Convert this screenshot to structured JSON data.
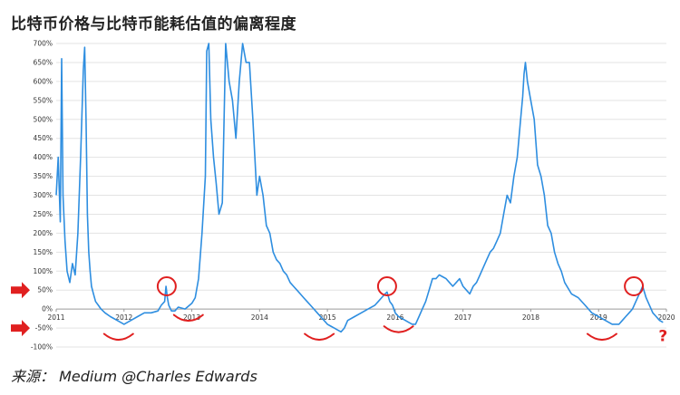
{
  "title": "比特币价格与比特币能耗估值的偏离程度",
  "source": "来源： Medium @Charles Edwards",
  "chart_data": {
    "type": "line",
    "title": "比特币价格与比特币能耗估值的偏离程度",
    "xlabel": "",
    "ylabel": "",
    "ylim": [
      -100,
      700
    ],
    "xlim": [
      2011.0,
      2020.0
    ],
    "grid": true,
    "y_ticks": [
      "700%",
      "650%",
      "600%",
      "550%",
      "500%",
      "450%",
      "400%",
      "350%",
      "300%",
      "250%",
      "200%",
      "150%",
      "100%",
      "50%",
      "0%",
      "-50%",
      "-100%"
    ],
    "x_ticks": [
      "2011",
      "2012",
      "2013",
      "2014",
      "2015",
      "2016",
      "2017",
      "2018",
      "2019",
      "2020"
    ],
    "color": "#2e8ee0",
    "series": [
      {
        "x": [
          2011.0,
          2011.03,
          2011.06,
          2011.08,
          2011.1,
          2011.13,
          2011.16,
          2011.2,
          2011.24,
          2011.28,
          2011.32,
          2011.36,
          2011.4,
          2011.42,
          2011.44,
          2011.46,
          2011.48,
          2011.5,
          2011.52,
          2011.55,
          2011.58,
          2011.62,
          2011.66,
          2011.72,
          2011.8,
          2011.9,
          2012.0,
          2012.1,
          2012.2,
          2012.3,
          2012.4,
          2012.5,
          2012.55,
          2012.6,
          2012.62,
          2012.64,
          2012.66,
          2012.7,
          2012.75,
          2012.8,
          2012.9,
          2013.0,
          2013.05,
          2013.1,
          2013.15,
          2013.2,
          2013.22,
          2013.25,
          2013.28,
          2013.32,
          2013.36,
          2013.4,
          2013.45,
          2013.5,
          2013.55,
          2013.6,
          2013.65,
          2013.7,
          2013.75,
          2013.8,
          2013.85,
          2013.9,
          2013.93,
          2013.96,
          2014.0,
          2014.05,
          2014.1,
          2014.15,
          2014.2,
          2014.25,
          2014.3,
          2014.35,
          2014.4,
          2014.45,
          2014.5,
          2014.55,
          2014.6,
          2014.65,
          2014.7,
          2014.75,
          2014.8,
          2014.85,
          2014.9,
          2014.95,
          2015.0,
          2015.05,
          2015.1,
          2015.15,
          2015.2,
          2015.25,
          2015.3,
          2015.4,
          2015.5,
          2015.6,
          2015.7,
          2015.75,
          2015.8,
          2015.85,
          2015.88,
          2015.92,
          2015.96,
          2016.0,
          2016.05,
          2016.1,
          2016.15,
          2016.2,
          2016.25,
          2016.3,
          2016.35,
          2016.4,
          2016.45,
          2016.5,
          2016.55,
          2016.6,
          2016.65,
          2016.7,
          2016.75,
          2016.8,
          2016.85,
          2016.9,
          2016.95,
          2017.0,
          2017.05,
          2017.1,
          2017.15,
          2017.2,
          2017.25,
          2017.3,
          2017.35,
          2017.4,
          2017.45,
          2017.5,
          2017.55,
          2017.6,
          2017.65,
          2017.7,
          2017.75,
          2017.8,
          2017.85,
          2017.88,
          2017.9,
          2017.92,
          2017.95,
          2018.0,
          2018.05,
          2018.1,
          2018.15,
          2018.2,
          2018.25,
          2018.3,
          2018.35,
          2018.4,
          2018.45,
          2018.5,
          2018.6,
          2018.7,
          2018.8,
          2018.9,
          2019.0,
          2019.1,
          2019.2,
          2019.3,
          2019.35,
          2019.4,
          2019.45,
          2019.5,
          2019.55,
          2019.6,
          2019.65,
          2019.7,
          2019.75,
          2019.8,
          2019.85,
          2019.9,
          2019.95
        ],
        "values": [
          300,
          400,
          230,
          660,
          300,
          180,
          100,
          70,
          120,
          90,
          200,
          400,
          630,
          690,
          500,
          250,
          150,
          100,
          60,
          40,
          20,
          10,
          0,
          -10,
          -20,
          -30,
          -40,
          -30,
          -20,
          -10,
          -10,
          -5,
          10,
          20,
          60,
          30,
          10,
          -5,
          -5,
          5,
          0,
          15,
          30,
          80,
          200,
          350,
          680,
          700,
          500,
          400,
          330,
          250,
          280,
          700,
          600,
          550,
          450,
          600,
          700,
          650,
          650,
          500,
          400,
          300,
          350,
          300,
          220,
          200,
          150,
          130,
          120,
          100,
          90,
          70,
          60,
          50,
          40,
          30,
          20,
          10,
          0,
          -10,
          -20,
          -30,
          -40,
          -45,
          -50,
          -55,
          -60,
          -50,
          -30,
          -20,
          -10,
          0,
          10,
          20,
          30,
          40,
          45,
          20,
          10,
          -10,
          -20,
          -25,
          -30,
          -35,
          -40,
          -40,
          -20,
          0,
          20,
          50,
          80,
          80,
          90,
          85,
          80,
          70,
          60,
          70,
          80,
          60,
          50,
          40,
          60,
          70,
          90,
          110,
          130,
          150,
          160,
          180,
          200,
          250,
          300,
          280,
          350,
          400,
          500,
          560,
          620,
          650,
          600,
          550,
          500,
          380,
          350,
          300,
          220,
          200,
          150,
          120,
          100,
          70,
          40,
          30,
          10,
          -10,
          -20,
          -30,
          -40,
          -40,
          -30,
          -20,
          -10,
          0,
          20,
          40,
          60,
          30,
          10,
          -10,
          -20,
          -30,
          -35
        ]
      }
    ],
    "annotations": {
      "circle_x": [
        2012.63,
        2015.88,
        2019.52
      ],
      "circle_y": [
        60,
        60,
        60
      ],
      "smile_x": [
        2011.92,
        2012.95,
        2014.88,
        2016.05,
        2019.05
      ],
      "smile_y": [
        -75,
        -25,
        -75,
        -55,
        -75
      ],
      "arrow_values": [
        50,
        -50
      ],
      "question_mark": "?",
      "question_x": 2019.95,
      "question_y": -75
    }
  }
}
